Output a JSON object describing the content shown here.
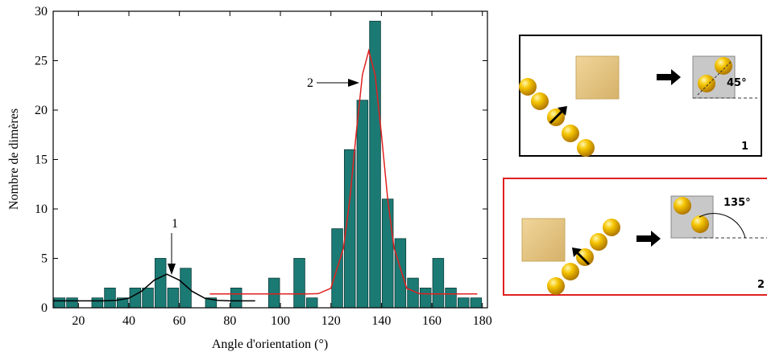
{
  "chart_data": {
    "type": "histogram",
    "xlabel": "Angle d'orientation (°)",
    "ylabel": "Nombre de dimères",
    "bins": [
      10,
      15,
      20,
      25,
      30,
      35,
      40,
      45,
      50,
      55,
      60,
      65,
      70,
      75,
      80,
      85,
      90,
      95,
      100,
      105,
      110,
      115,
      120,
      125,
      130,
      135,
      140,
      145,
      150,
      155,
      160,
      165,
      170,
      175,
      180
    ],
    "values": [
      1,
      1,
      0,
      1,
      2,
      1,
      2,
      2,
      5,
      2,
      4,
      0,
      1,
      0,
      2,
      0,
      0,
      3,
      0,
      5,
      1,
      0,
      8,
      16,
      21,
      29,
      11,
      7,
      3,
      2,
      5,
      2,
      1,
      1
    ],
    "color": "#1b7a74",
    "curves": [
      {
        "color": "#000000",
        "x": [
          10,
          20,
          30,
          35,
          40,
          45,
          50,
          55,
          60,
          65,
          70,
          75,
          80,
          90
        ],
        "values": [
          0.7,
          0.7,
          0.7,
          0.75,
          0.97,
          1.67,
          2.79,
          3.4,
          2.79,
          1.67,
          0.97,
          0.75,
          0.7,
          0.7
        ]
      },
      {
        "color": "#e02020",
        "x": [
          72,
          100,
          110,
          115,
          120,
          125,
          127.5,
          130,
          132.5,
          135,
          137.5,
          140,
          142.5,
          145,
          150,
          155,
          160,
          178
        ],
        "values": [
          1.4,
          1.4,
          1.4,
          1.43,
          1.98,
          6.05,
          11.0,
          17.6,
          23.6,
          26,
          23.6,
          17.6,
          11.0,
          6.05,
          1.98,
          1.43,
          1.4,
          1.4
        ]
      }
    ],
    "annotations": [
      "1",
      "2"
    ],
    "xlim": [
      10,
      182
    ],
    "ylim": [
      0,
      30
    ],
    "xticks": [
      20,
      40,
      60,
      80,
      100,
      120,
      140,
      160,
      180
    ],
    "yticks": [
      0,
      5,
      10,
      15,
      20,
      25,
      30
    ]
  },
  "insets": [
    {
      "angle": "45°",
      "label": "1"
    },
    {
      "angle": "135°",
      "label": "2"
    }
  ]
}
